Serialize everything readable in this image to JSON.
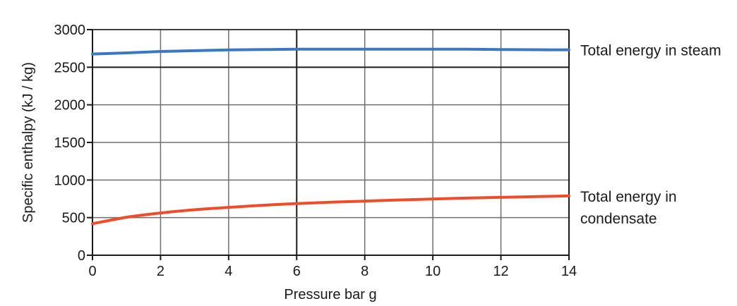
{
  "chart_data": {
    "type": "line",
    "title": "",
    "xlabel": "Pressure bar g",
    "ylabel": "Specific enthalpy (kJ / kg)",
    "xlim": [
      0,
      14
    ],
    "ylim": [
      0,
      3000
    ],
    "xticks": [
      0,
      2,
      4,
      6,
      8,
      10,
      12,
      14
    ],
    "yticks": [
      0,
      500,
      1000,
      1500,
      2000,
      2500,
      3000
    ],
    "x_tick_labels": [
      "0",
      "2",
      "4",
      "6",
      "8",
      "10",
      "12",
      "14"
    ],
    "y_tick_labels": [
      "0",
      "500",
      "1000",
      "1500",
      "2000",
      "2500",
      "3000"
    ],
    "grid": true,
    "series": [
      {
        "name": "Total energy in steam",
        "color": "#3a78c3",
        "x": [
          0,
          1,
          2,
          3,
          4,
          5,
          6,
          7,
          8,
          9,
          10,
          11,
          12,
          13,
          14
        ],
        "y": [
          2676,
          2691,
          2709,
          2720,
          2730,
          2735,
          2739,
          2739,
          2739,
          2739,
          2739,
          2739,
          2736,
          2733,
          2732
        ]
      },
      {
        "name": "Total energy in condensate",
        "label_lines": [
          "Total energy in",
          "condensate"
        ],
        "color": "#ef4c2c",
        "x": [
          0,
          1,
          2,
          3,
          4,
          5,
          6,
          7,
          8,
          9,
          10,
          11,
          12,
          13,
          14
        ],
        "y": [
          419,
          505,
          562,
          605,
          637,
          665,
          687,
          705,
          720,
          735,
          748,
          760,
          770,
          780,
          788
        ]
      }
    ]
  }
}
